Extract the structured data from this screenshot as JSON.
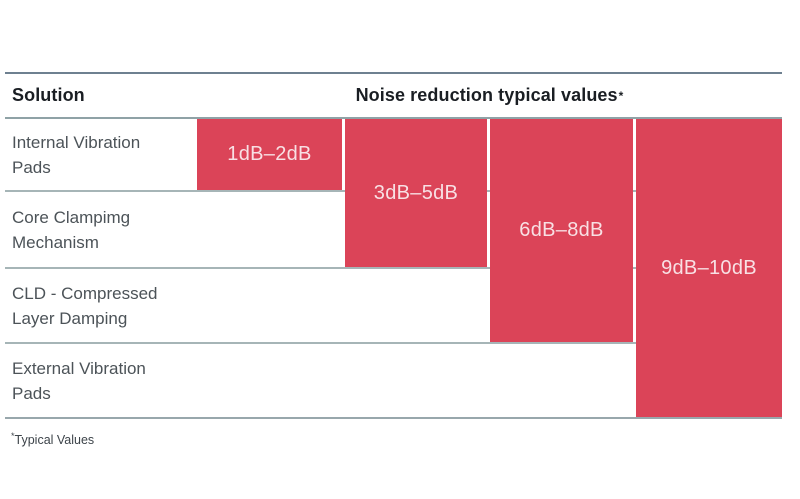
{
  "colors": {
    "bar_red": "#DB4458",
    "bar_label_text": "#F8E0E4",
    "header_text": "#1A1E23",
    "body_text": "#4C5358",
    "top_rule": "#6E8090",
    "row_rule": "#A6B5B7"
  },
  "header": {
    "solution_label": "Solution",
    "values_title": "Noise reduction typical values",
    "asterisk": "*"
  },
  "rows": [
    {
      "label": "Internal Vibration Pads",
      "value": "1dB–2dB"
    },
    {
      "label": "Core Clampimg Mechanism",
      "value": "3dB–5dB"
    },
    {
      "label": "CLD - Compressed Layer Damping",
      "value": "6dB–8dB"
    },
    {
      "label": "External Vibration Pads",
      "value": "9dB–10dB"
    }
  ],
  "footnote": {
    "asterisk": "*",
    "text": "Typical Values"
  },
  "chart_data": {
    "type": "bar",
    "title": "Noise reduction typical values*",
    "categories": [
      "Internal Vibration Pads",
      "Core Clampimg Mechanism",
      "CLD - Compressed Layer Damping",
      "External Vibration Pads"
    ],
    "series": [
      {
        "name": "Noise reduction (dB)",
        "low": [
          1,
          3,
          6,
          9
        ],
        "high": [
          2,
          5,
          8,
          10
        ],
        "labels": [
          "1dB–2dB",
          "3dB–5dB",
          "6dB–8dB",
          "9dB–10dB"
        ]
      }
    ],
    "layout": "stepped bars: bar for category N spans table rows 1 through N, starting below the header rule",
    "value_range_db": [
      0,
      10
    ],
    "grid": false,
    "legend": false,
    "footnote": "*Typical Values"
  }
}
